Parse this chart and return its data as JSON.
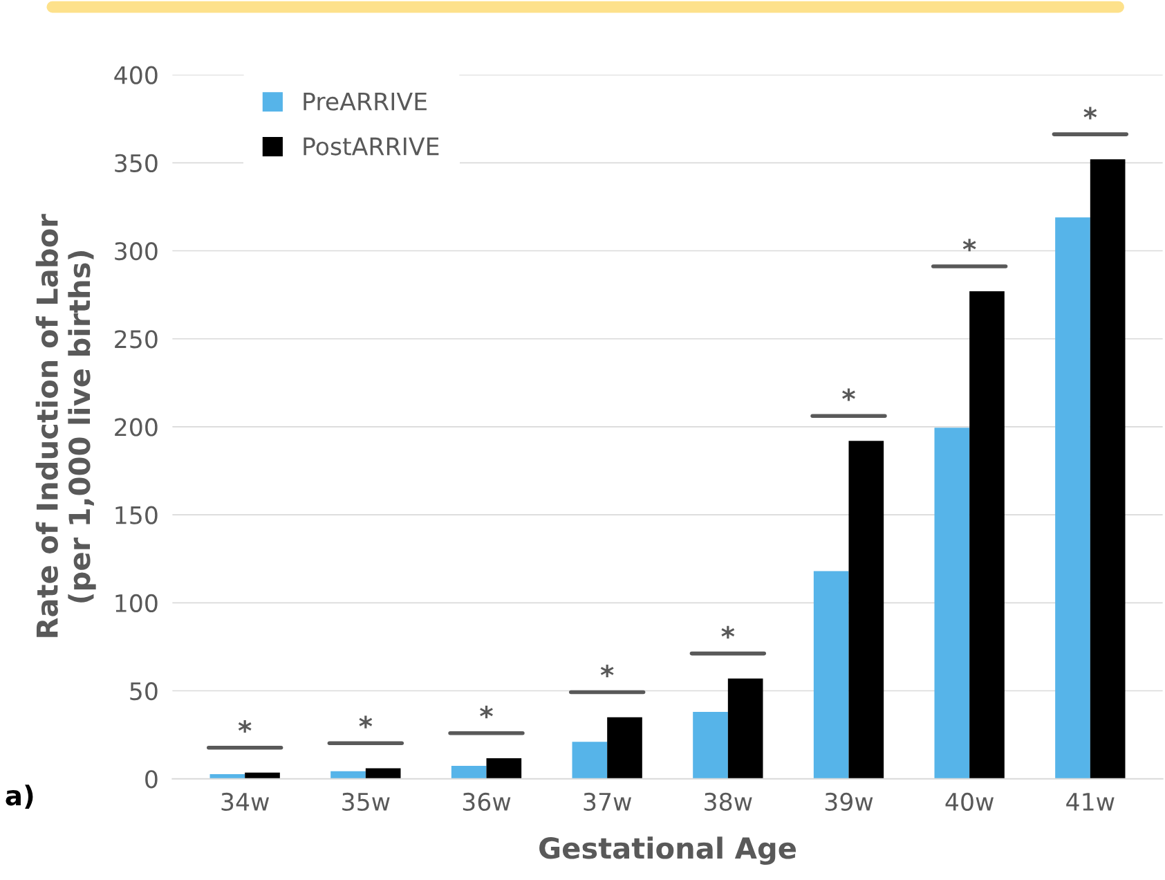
{
  "chart_data": {
    "type": "bar",
    "xlabel": "Gestational Age",
    "ylabel": "Rate of Induction of Labor\n(per 1,000 live births)",
    "categories": [
      "34w",
      "35w",
      "36w",
      "37w",
      "38w",
      "39w",
      "40w",
      "41w"
    ],
    "series": [
      {
        "name": "PreARRIVE",
        "color": "#56b4e9",
        "values": [
          2.6,
          4.3,
          7.4,
          21,
          38,
          118,
          199.5,
          319
        ]
      },
      {
        "name": "PostARRIVE",
        "color": "#000000",
        "values": [
          3.5,
          6,
          11.7,
          35,
          57,
          192,
          277,
          352
        ]
      }
    ],
    "ylim": [
      0,
      400
    ],
    "yticks": [
      0,
      50,
      100,
      150,
      200,
      250,
      300,
      350,
      400
    ],
    "grid": "y",
    "legend": "top left",
    "annotations": [
      "*",
      "*",
      "*",
      "*",
      "*",
      "*",
      "*",
      "*",
      "a)"
    ]
  }
}
